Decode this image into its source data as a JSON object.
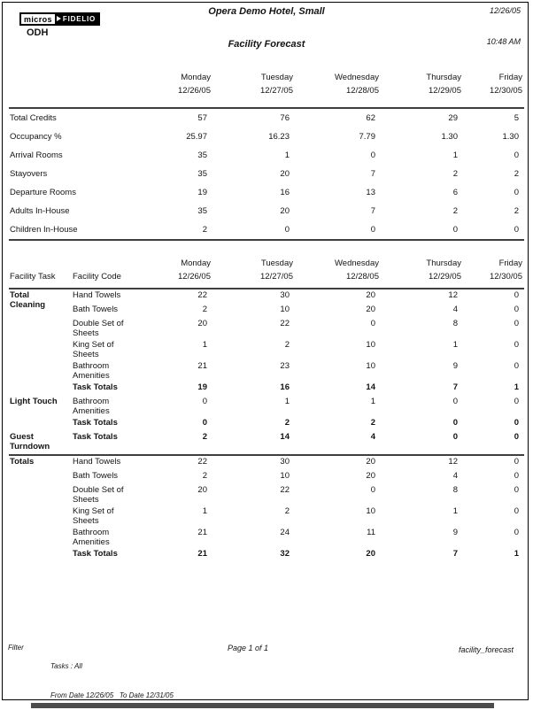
{
  "header": {
    "hotel_name": "Opera Demo Hotel, Small",
    "report_date": "12/26/05",
    "report_time": "10:48 AM",
    "report_title": "Facility Forecast",
    "property_code": "ODH",
    "logo": {
      "micros": "micros",
      "fidelio": "FIDELIO"
    }
  },
  "days": [
    {
      "name": "Monday",
      "date": "12/26/05"
    },
    {
      "name": "Tuesday",
      "date": "12/27/05"
    },
    {
      "name": "Wednesday",
      "date": "12/28/05"
    },
    {
      "name": "Thursday",
      "date": "12/29/05"
    },
    {
      "name": "Friday",
      "date": "12/30/05"
    }
  ],
  "summary_table": {
    "rows": [
      {
        "label": "Total Credits",
        "values": [
          "57",
          "76",
          "62",
          "29",
          "5"
        ]
      },
      {
        "label": "Occupancy %",
        "values": [
          "25.97",
          "16.23",
          "7.79",
          "1.30",
          "1.30"
        ]
      },
      {
        "label": "Arrival Rooms",
        "values": [
          "35",
          "1",
          "0",
          "1",
          "0"
        ]
      },
      {
        "label": "Stayovers",
        "values": [
          "35",
          "20",
          "7",
          "2",
          "2"
        ]
      },
      {
        "label": "Departure Rooms",
        "values": [
          "19",
          "16",
          "13",
          "6",
          "0"
        ]
      },
      {
        "label": "Adults In-House",
        "values": [
          "35",
          "20",
          "7",
          "2",
          "2"
        ]
      },
      {
        "label": "Children In-House",
        "values": [
          "2",
          "0",
          "0",
          "0",
          "0"
        ]
      }
    ]
  },
  "facility_table": {
    "col1_header": "Facility Task",
    "col2_header": "Facility Code",
    "groups": [
      {
        "task": "Total\nCleaning",
        "separator_after": false,
        "rows": [
          {
            "code": "Hand Towels",
            "bold": false,
            "values": [
              "22",
              "30",
              "20",
              "12",
              "0"
            ]
          },
          {
            "code": "Bath Towels",
            "bold": false,
            "values": [
              "2",
              "10",
              "20",
              "4",
              "0"
            ]
          },
          {
            "code": "Double Set of Sheets",
            "bold": false,
            "values": [
              "20",
              "22",
              "0",
              "8",
              "0"
            ]
          },
          {
            "code": "King Set of Sheets",
            "bold": false,
            "values": [
              "1",
              "2",
              "10",
              "1",
              "0"
            ]
          },
          {
            "code": "Bathroom Amenities",
            "bold": false,
            "values": [
              "21",
              "23",
              "10",
              "9",
              "0"
            ]
          },
          {
            "code": "Task Totals",
            "bold": true,
            "values": [
              "19",
              "16",
              "14",
              "7",
              "1"
            ]
          }
        ]
      },
      {
        "task": "Light Touch",
        "separator_after": false,
        "rows": [
          {
            "code": "Bathroom Amenities",
            "bold": false,
            "values": [
              "0",
              "1",
              "1",
              "0",
              "0"
            ]
          },
          {
            "code": "Task Totals",
            "bold": true,
            "values": [
              "0",
              "2",
              "2",
              "0",
              "0"
            ]
          }
        ]
      },
      {
        "task": "Guest\nTurndown",
        "separator_after": true,
        "rows": [
          {
            "code": "Task Totals",
            "bold": true,
            "values": [
              "2",
              "14",
              "4",
              "0",
              "0"
            ]
          }
        ]
      },
      {
        "task": "Totals",
        "separator_after": false,
        "rows": [
          {
            "code": "Hand Towels",
            "bold": false,
            "values": [
              "22",
              "30",
              "20",
              "12",
              "0"
            ]
          },
          {
            "code": "Bath Towels",
            "bold": false,
            "values": [
              "2",
              "10",
              "20",
              "4",
              "0"
            ]
          },
          {
            "code": "Double Set of Sheets",
            "bold": false,
            "values": [
              "20",
              "22",
              "0",
              "8",
              "0"
            ]
          },
          {
            "code": "King Set of Sheets",
            "bold": false,
            "values": [
              "1",
              "2",
              "10",
              "1",
              "0"
            ]
          },
          {
            "code": "Bathroom Amenities",
            "bold": false,
            "values": [
              "21",
              "24",
              "11",
              "9",
              "0"
            ]
          },
          {
            "code": "Task Totals",
            "bold": true,
            "values": [
              "21",
              "32",
              "20",
              "7",
              "1"
            ]
          }
        ]
      }
    ]
  },
  "footer": {
    "filter_label": "Filter",
    "tasks_line": "Tasks : All",
    "dates_line": "From Date 12/26/05   To Date 12/31/05",
    "page_info": "Page 1 of 1",
    "report_file": "facility_forecast"
  }
}
